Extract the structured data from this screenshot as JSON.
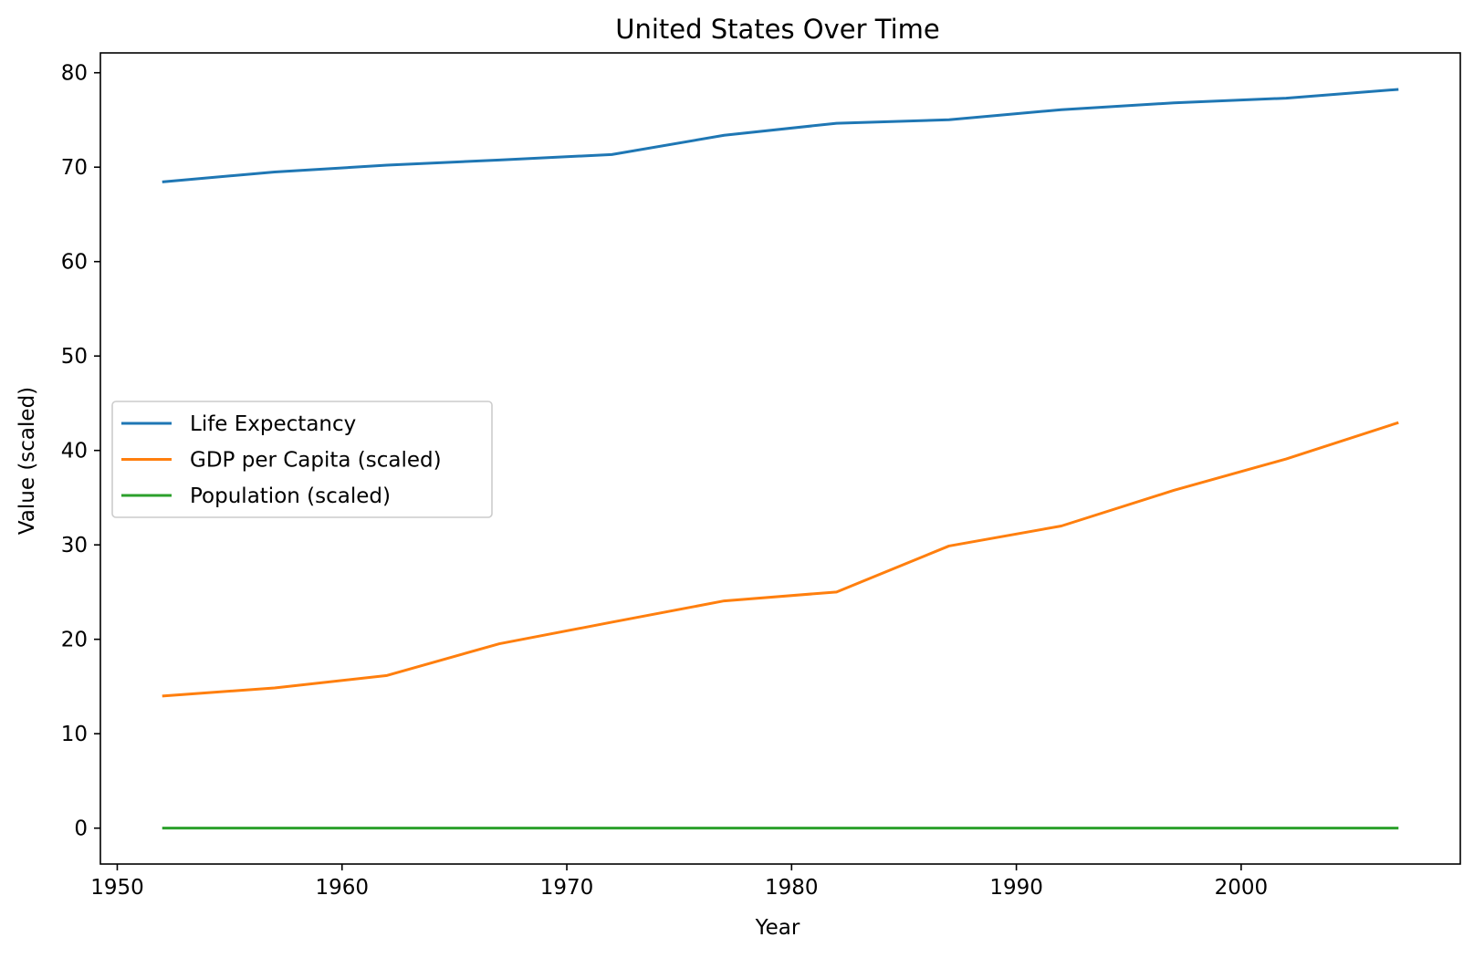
{
  "chart_data": {
    "type": "line",
    "title": "United States Over Time",
    "xlabel": "Year",
    "ylabel": "Value (scaled)",
    "xlim": [
      1949.25,
      2009.75
    ],
    "ylim": [
      -3.8,
      82.1
    ],
    "xticks": [
      1950,
      1960,
      1970,
      1980,
      1990,
      2000
    ],
    "yticks": [
      0,
      10,
      20,
      30,
      40,
      50,
      60,
      70,
      80
    ],
    "grid": false,
    "legend_position": "center-left",
    "x": [
      1952,
      1957,
      1962,
      1967,
      1972,
      1977,
      1982,
      1987,
      1992,
      1997,
      2002,
      2007
    ],
    "series": [
      {
        "name": "Life Expectancy",
        "color": "#1f77b4",
        "values": [
          68.44,
          69.49,
          70.21,
          70.76,
          71.34,
          73.38,
          74.65,
          75.02,
          76.09,
          76.81,
          77.31,
          78.24
        ]
      },
      {
        "name": "GDP per Capita (scaled)",
        "color": "#ff7f0e",
        "values": [
          13.99,
          14.85,
          16.17,
          19.53,
          21.81,
          24.07,
          25.01,
          29.88,
          32.0,
          35.77,
          39.1,
          42.95
        ]
      },
      {
        "name": "Population (scaled)",
        "color": "#2ca02c",
        "values": [
          0.0,
          0.0,
          0.0,
          0.0,
          0.0,
          0.0,
          0.0,
          0.0,
          0.0,
          0.0,
          0.0,
          0.0
        ]
      }
    ]
  }
}
